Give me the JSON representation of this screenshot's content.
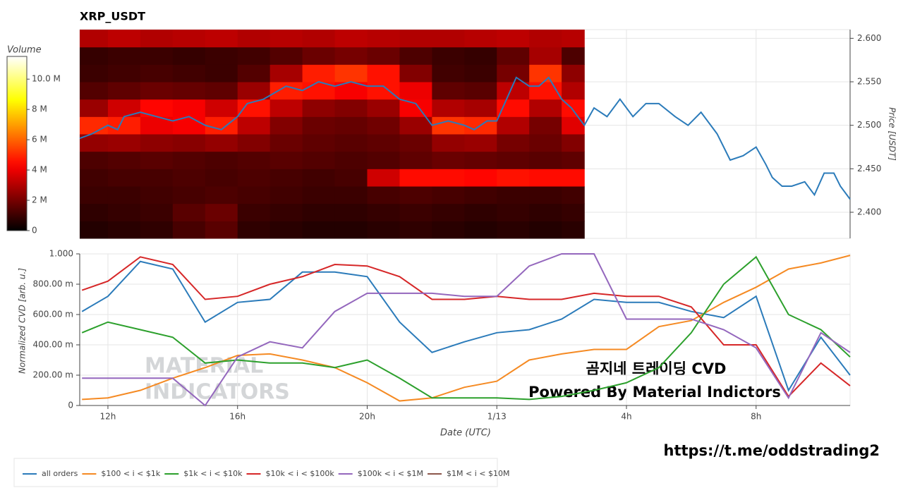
{
  "chart_data": [
    {
      "type": "heatmap",
      "title": "XRP_USDT",
      "ylabel": "Price [USDT]",
      "xlim": [
        11.13,
        34.9
      ],
      "xticks": [
        {
          "value": 12,
          "label": "12h"
        },
        {
          "value": 16,
          "label": "16h"
        },
        {
          "value": 20,
          "label": "20h"
        },
        {
          "value": 24,
          "label": "1/13"
        },
        {
          "value": 28,
          "label": "4h"
        },
        {
          "value": 32,
          "label": "8h"
        }
      ],
      "ylim": [
        2.37,
        2.61
      ],
      "yticks": [
        {
          "value": 2.4,
          "label": "2.400"
        },
        {
          "value": 2.45,
          "label": "2.450"
        },
        {
          "value": 2.5,
          "label": "2.500"
        },
        {
          "value": 2.55,
          "label": "2.550"
        },
        {
          "value": 2.6,
          "label": "2.600"
        }
      ],
      "grid": true,
      "x_bins": [
        11.13,
        12,
        13,
        14,
        15,
        16,
        17,
        18,
        19,
        20,
        21,
        22,
        23,
        24,
        25,
        26,
        26.7
      ],
      "y_bins": [
        2.37,
        2.39,
        2.41,
        2.43,
        2.45,
        2.47,
        2.49,
        2.51,
        2.53,
        2.55,
        2.57,
        2.59,
        2.61
      ],
      "values": [
        [
          0.6,
          0.7,
          0.8,
          1.2,
          1.5,
          0.8,
          0.7,
          0.6,
          0.6,
          0.7,
          0.8,
          0.7,
          0.6,
          0.7,
          0.6,
          0.7
        ],
        [
          0.8,
          0.9,
          1.0,
          1.5,
          1.8,
          1.0,
          0.9,
          0.8,
          0.8,
          0.9,
          1.0,
          0.9,
          0.8,
          0.9,
          0.8,
          0.9
        ],
        [
          1.0,
          1.0,
          1.1,
          1.2,
          1.3,
          1.2,
          1.1,
          1.0,
          1.0,
          1.2,
          1.3,
          1.2,
          1.1,
          1.0,
          1.0,
          1.1
        ],
        [
          1.1,
          1.2,
          1.2,
          1.3,
          1.2,
          1.3,
          1.2,
          1.1,
          1.2,
          3.5,
          4.5,
          4.5,
          4.4,
          4.6,
          4.5,
          4.5
        ],
        [
          1.3,
          1.4,
          1.5,
          1.4,
          1.3,
          1.4,
          1.5,
          1.4,
          1.3,
          1.4,
          1.6,
          1.8,
          1.7,
          1.6,
          1.5,
          1.6
        ],
        [
          2.5,
          2.6,
          2.4,
          2.3,
          2.5,
          2.2,
          1.8,
          1.6,
          1.5,
          1.6,
          1.8,
          2.5,
          2.6,
          2.0,
          1.8,
          2.2
        ],
        [
          5.0,
          4.8,
          4.0,
          4.2,
          4.8,
          3.2,
          2.2,
          1.8,
          1.7,
          1.9,
          2.6,
          5.2,
          5.0,
          3.0,
          2.0,
          3.8
        ],
        [
          2.6,
          3.5,
          4.4,
          4.2,
          3.5,
          4.6,
          3.2,
          2.4,
          2.2,
          2.6,
          4.2,
          3.0,
          2.8,
          4.5,
          3.0,
          4.5
        ],
        [
          1.4,
          1.6,
          1.8,
          1.7,
          1.6,
          2.6,
          4.8,
          4.6,
          4.2,
          4.6,
          4.0,
          1.6,
          1.5,
          3.2,
          4.6,
          3.0
        ],
        [
          1.0,
          1.1,
          1.2,
          1.1,
          1.0,
          1.4,
          2.8,
          4.8,
          5.2,
          4.6,
          2.2,
          1.1,
          1.0,
          2.0,
          5.2,
          2.4
        ],
        [
          0.9,
          1.0,
          1.0,
          0.9,
          1.0,
          1.1,
          1.4,
          1.8,
          2.0,
          1.8,
          1.3,
          1.0,
          0.9,
          1.6,
          2.8,
          1.3
        ],
        [
          3.0,
          3.2,
          3.0,
          3.1,
          3.2,
          3.0,
          3.1,
          3.0,
          3.2,
          3.1,
          3.0,
          3.0,
          3.1,
          3.2,
          3.0,
          3.1
        ]
      ],
      "colorbar": {
        "label": "Volume",
        "lim": [
          0,
          11.5
        ],
        "ticks": [
          0,
          {
            "value": 2,
            "label": "2 M"
          },
          {
            "value": 4,
            "label": "4 M"
          },
          {
            "value": 6,
            "label": "6 M"
          },
          {
            "value": 8,
            "label": "8 M"
          },
          {
            "value": 10,
            "label": "10.0 M"
          }
        ]
      },
      "price": {
        "color": "#2b7bba",
        "x": [
          11.13,
          11.5,
          12,
          12.3,
          12.5,
          13,
          13.5,
          14,
          14.5,
          15,
          15.5,
          16,
          16.3,
          16.8,
          17.5,
          18,
          18.5,
          19,
          19.5,
          20,
          20.5,
          21,
          21.5,
          22,
          22.5,
          23,
          23.3,
          23.7,
          24,
          24.3,
          24.6,
          25,
          25.3,
          25.6,
          26,
          26.3,
          26.7,
          27,
          27.4,
          27.8,
          28.2,
          28.6,
          29,
          29.5,
          29.9,
          30.3,
          30.8,
          31.2,
          31.6,
          32,
          32.3,
          32.5,
          32.8,
          33.1,
          33.5,
          33.8,
          34.1,
          34.4,
          34.6,
          34.9
        ],
        "values": [
          2.485,
          2.49,
          2.5,
          2.495,
          2.51,
          2.515,
          2.51,
          2.505,
          2.51,
          2.5,
          2.495,
          2.51,
          2.525,
          2.53,
          2.545,
          2.54,
          2.55,
          2.545,
          2.55,
          2.545,
          2.545,
          2.53,
          2.525,
          2.5,
          2.505,
          2.5,
          2.495,
          2.505,
          2.505,
          2.53,
          2.555,
          2.545,
          2.545,
          2.555,
          2.53,
          2.52,
          2.5,
          2.52,
          2.51,
          2.53,
          2.51,
          2.525,
          2.525,
          2.51,
          2.5,
          2.515,
          2.49,
          2.46,
          2.465,
          2.475,
          2.455,
          2.44,
          2.43,
          2.43,
          2.435,
          2.42,
          2.445,
          2.445,
          2.43,
          2.415
        ]
      }
    },
    {
      "type": "line",
      "xlabel": "Date (UTC)",
      "ylabel": "Normalized CVD [arb. u.]",
      "xlim": [
        11.13,
        34.9
      ],
      "xticks": [
        {
          "value": 12,
          "label": "12h"
        },
        {
          "value": 16,
          "label": "16h"
        },
        {
          "value": 20,
          "label": "20h"
        },
        {
          "value": 24,
          "label": "1/13"
        },
        {
          "value": 28,
          "label": "4h"
        },
        {
          "value": 32,
          "label": "8h"
        }
      ],
      "ylim": [
        0,
        1
      ],
      "yticks": [
        0,
        {
          "value": 0.2,
          "label": "200.00 m"
        },
        {
          "value": 0.4,
          "label": "400.00 m"
        },
        {
          "value": 0.6,
          "label": "600.00 m"
        },
        {
          "value": 0.8,
          "label": "800.00 m"
        },
        {
          "value": 1,
          "label": "1.000"
        }
      ],
      "grid": true,
      "x": [
        11.2,
        12,
        13,
        14,
        15,
        16,
        17,
        18,
        19,
        20,
        21,
        22,
        23,
        24,
        25,
        26,
        27,
        28,
        29,
        30,
        31,
        32,
        33,
        34,
        34.9
      ],
      "series": [
        {
          "name": "all orders",
          "color": "#2b7bba",
          "values": [
            0.62,
            0.72,
            0.95,
            0.9,
            0.55,
            0.68,
            0.7,
            0.88,
            0.88,
            0.85,
            0.55,
            0.35,
            0.42,
            0.48,
            0.5,
            0.57,
            0.7,
            0.68,
            0.68,
            0.62,
            0.58,
            0.72,
            0.1,
            0.45,
            0.2
          ]
        },
        {
          "name": "$100 < i < $1k",
          "color": "#f58a23",
          "values": [
            0.04,
            0.05,
            0.1,
            0.18,
            0.25,
            0.33,
            0.34,
            0.3,
            0.25,
            0.15,
            0.03,
            0.05,
            0.12,
            0.16,
            0.3,
            0.34,
            0.37,
            0.37,
            0.52,
            0.56,
            0.68,
            0.78,
            0.9,
            0.94,
            0.99
          ]
        },
        {
          "name": "$1k < i < $10k",
          "color": "#2ca02c",
          "values": [
            0.48,
            0.55,
            0.5,
            0.45,
            0.28,
            0.3,
            0.28,
            0.28,
            0.25,
            0.3,
            0.18,
            0.05,
            0.05,
            0.05,
            0.04,
            0.06,
            0.1,
            0.15,
            0.25,
            0.48,
            0.8,
            0.98,
            0.6,
            0.5,
            0.32
          ]
        },
        {
          "name": "$10k < i < $100k",
          "color": "#d62728",
          "values": [
            0.76,
            0.82,
            0.98,
            0.93,
            0.7,
            0.72,
            0.8,
            0.85,
            0.93,
            0.92,
            0.85,
            0.7,
            0.7,
            0.72,
            0.7,
            0.7,
            0.74,
            0.72,
            0.72,
            0.65,
            0.4,
            0.4,
            0.06,
            0.28,
            0.13
          ]
        },
        {
          "name": "$100k < i < $1M",
          "color": "#9467bd",
          "values": [
            0.18,
            0.18,
            0.18,
            0.18,
            0,
            0.32,
            0.42,
            0.38,
            0.62,
            0.74,
            0.74,
            0.74,
            0.72,
            0.72,
            0.92,
            1,
            1,
            0.57,
            0.57,
            0.57,
            0.5,
            0.38,
            0.05,
            0.48,
            0.35
          ]
        },
        {
          "name": "$1M < i < $10M",
          "color": "#8c564b",
          "values": [
            null,
            null,
            null,
            null,
            null,
            null,
            null,
            null,
            null,
            null,
            null,
            null,
            null,
            null,
            null,
            null,
            null,
            null,
            null,
            null,
            null,
            null,
            null,
            null,
            null
          ]
        }
      ],
      "watermark": [
        "MATERIAL",
        "INDICATORS"
      ],
      "annotations": [
        "곰지네 트레이딩 CVD",
        "Powered By Material Indictors"
      ]
    }
  ],
  "footer": "https://t.me/oddstrading2"
}
